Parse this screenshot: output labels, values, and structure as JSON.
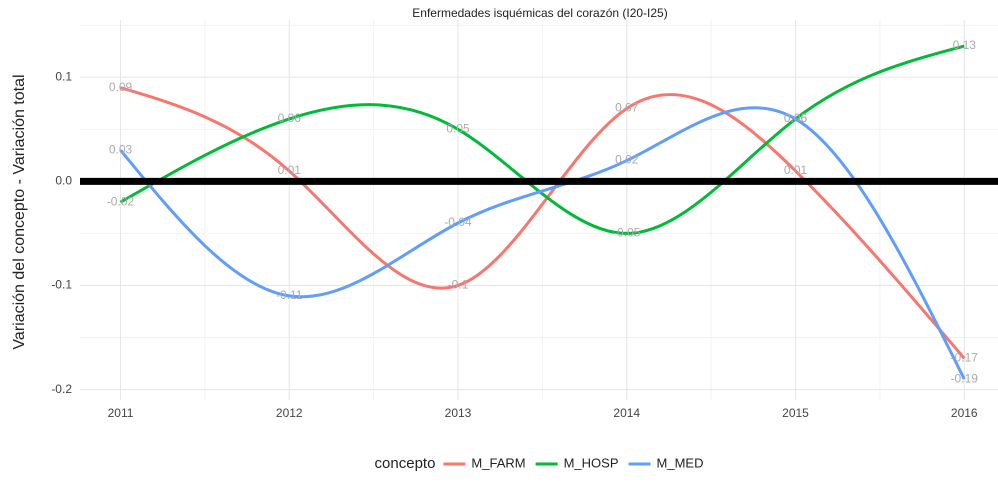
{
  "chart_data": {
    "type": "line",
    "title": "Enfermedades isquémicas del corazón (I20-I25)",
    "y_label": "Variación del concepto - Variación total",
    "x": [
      2011,
      2012,
      2013,
      2014,
      2015,
      2016
    ],
    "series": [
      {
        "name": "M_FARM",
        "color": "#F8766D",
        "values": [
          0.09,
          0.01,
          -0.1,
          0.07,
          0.01,
          -0.17
        ]
      },
      {
        "name": "M_HOSP",
        "color": "#00BA38",
        "values": [
          -0.02,
          0.06,
          0.05,
          -0.05,
          0.06,
          0.13
        ]
      },
      {
        "name": "M_MED",
        "color": "#619CFF",
        "values": [
          0.03,
          -0.11,
          -0.04,
          0.02,
          0.06,
          -0.19
        ]
      }
    ],
    "xlim": [
      2010.76,
      2016.2
    ],
    "xticks": [
      2011,
      2012,
      2013,
      2014,
      2015,
      2016
    ],
    "ylim": [
      -0.21,
      0.155
    ],
    "yticks": [
      {
        "value": -0.2,
        "label": "-0.2"
      },
      {
        "value": -0.1,
        "label": "-0.1"
      },
      {
        "value": 0,
        "label": "0.0"
      },
      {
        "value": 0.1,
        "label": "0.1"
      }
    ],
    "reference_line": 0,
    "grid": true,
    "legend_title": "concepto",
    "legend": "bottom"
  }
}
